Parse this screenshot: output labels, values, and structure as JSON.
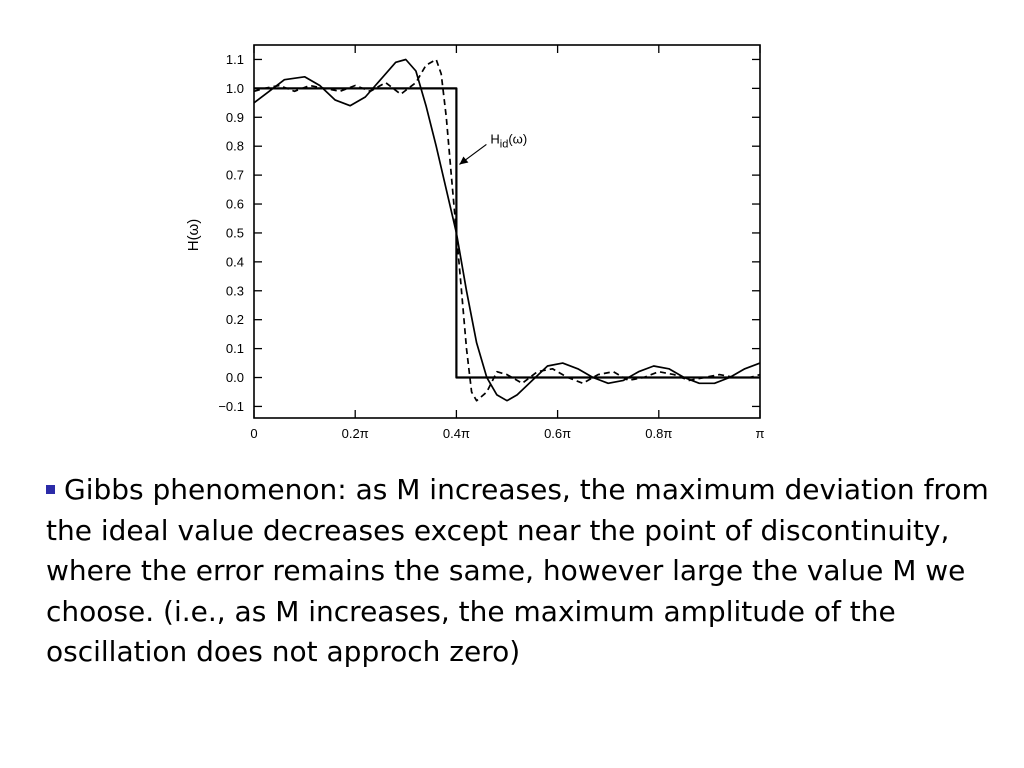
{
  "chart_data": {
    "type": "line",
    "ylabel": "H(ω)",
    "xlabel": "",
    "xlim": [
      0,
      1
    ],
    "ylim": [
      -0.14,
      1.15
    ],
    "x_ticks": [
      {
        "value": 0,
        "label": "0"
      },
      {
        "value": 0.2,
        "label": "0.2π"
      },
      {
        "value": 0.4,
        "label": "0.4π"
      },
      {
        "value": 0.6,
        "label": "0.6π"
      },
      {
        "value": 0.8,
        "label": "0.8π"
      },
      {
        "value": 1.0,
        "label": "π"
      }
    ],
    "y_ticks": [
      {
        "value": 1.1,
        "label": "1.1"
      },
      {
        "value": 1.0,
        "label": "1.0"
      },
      {
        "value": 0.9,
        "label": "0.9"
      },
      {
        "value": 0.8,
        "label": "0.8"
      },
      {
        "value": 0.7,
        "label": "0.7"
      },
      {
        "value": 0.6,
        "label": "0.6"
      },
      {
        "value": 0.5,
        "label": "0.5"
      },
      {
        "value": 0.4,
        "label": "0.4"
      },
      {
        "value": 0.3,
        "label": "0.3"
      },
      {
        "value": 0.2,
        "label": "0.2"
      },
      {
        "value": 0.1,
        "label": "0.1"
      },
      {
        "value": 0.0,
        "label": "0.0"
      },
      {
        "value": -0.1,
        "label": "−0.1"
      }
    ],
    "series": [
      {
        "name": "Hid(ω)",
        "style": "solid",
        "x": [
          0,
          0.4,
          0.4,
          1.0
        ],
        "y": [
          1.0,
          1.0,
          0.0,
          0.0
        ]
      },
      {
        "name": "",
        "style": "solid",
        "x": [
          0,
          0.03,
          0.06,
          0.1,
          0.13,
          0.16,
          0.19,
          0.22,
          0.25,
          0.28,
          0.3,
          0.32,
          0.34,
          0.36,
          0.38,
          0.4,
          0.42,
          0.44,
          0.46,
          0.48,
          0.5,
          0.52,
          0.55,
          0.58,
          0.61,
          0.64,
          0.67,
          0.7,
          0.73,
          0.76,
          0.79,
          0.82,
          0.85,
          0.88,
          0.91,
          0.94,
          0.97,
          1.0
        ],
        "y": [
          0.95,
          0.99,
          1.03,
          1.04,
          1.01,
          0.96,
          0.94,
          0.97,
          1.03,
          1.09,
          1.1,
          1.06,
          0.94,
          0.8,
          0.65,
          0.5,
          0.3,
          0.12,
          0.0,
          -0.06,
          -0.08,
          -0.06,
          -0.01,
          0.04,
          0.05,
          0.03,
          0.0,
          -0.02,
          -0.01,
          0.02,
          0.04,
          0.03,
          0.0,
          -0.02,
          -0.02,
          0.0,
          0.03,
          0.05
        ]
      },
      {
        "name": "",
        "style": "dashed",
        "x": [
          0,
          0.02,
          0.05,
          0.08,
          0.11,
          0.14,
          0.17,
          0.2,
          0.23,
          0.26,
          0.29,
          0.32,
          0.34,
          0.36,
          0.37,
          0.38,
          0.39,
          0.4,
          0.41,
          0.42,
          0.43,
          0.44,
          0.46,
          0.48,
          0.5,
          0.53,
          0.56,
          0.59,
          0.62,
          0.65,
          0.68,
          0.71,
          0.74,
          0.77,
          0.8,
          0.83,
          0.86,
          0.89,
          0.92,
          0.95,
          0.98,
          1.0
        ],
        "y": [
          0.99,
          1.0,
          1.01,
          0.99,
          1.01,
          1.0,
          0.99,
          1.01,
          0.99,
          1.02,
          0.98,
          1.02,
          1.08,
          1.1,
          1.05,
          0.9,
          0.7,
          0.5,
          0.3,
          0.1,
          -0.05,
          -0.08,
          -0.05,
          0.02,
          0.01,
          -0.02,
          0.02,
          0.03,
          0.0,
          -0.02,
          0.01,
          0.02,
          -0.01,
          0.0,
          0.02,
          0.01,
          -0.01,
          0.0,
          0.01,
          0.0,
          0.0,
          0.01
        ]
      }
    ],
    "annotation": {
      "label_main": "H",
      "label_sub": "id",
      "label_tail": "(ω)",
      "points_to": {
        "x": 0.4,
        "y": 0.73
      }
    },
    "grid": false
  },
  "caption": {
    "text": "Gibbs phenomenon: as M increases, the maximum deviation from the ideal value decreases except near the point of discontinuity, where the error remains the same, however large the value M we choose. (i.e., as M increases, the maximum amplitude of the oscillation does not approch zero)",
    "bullet_color": "#2b2ba8"
  }
}
